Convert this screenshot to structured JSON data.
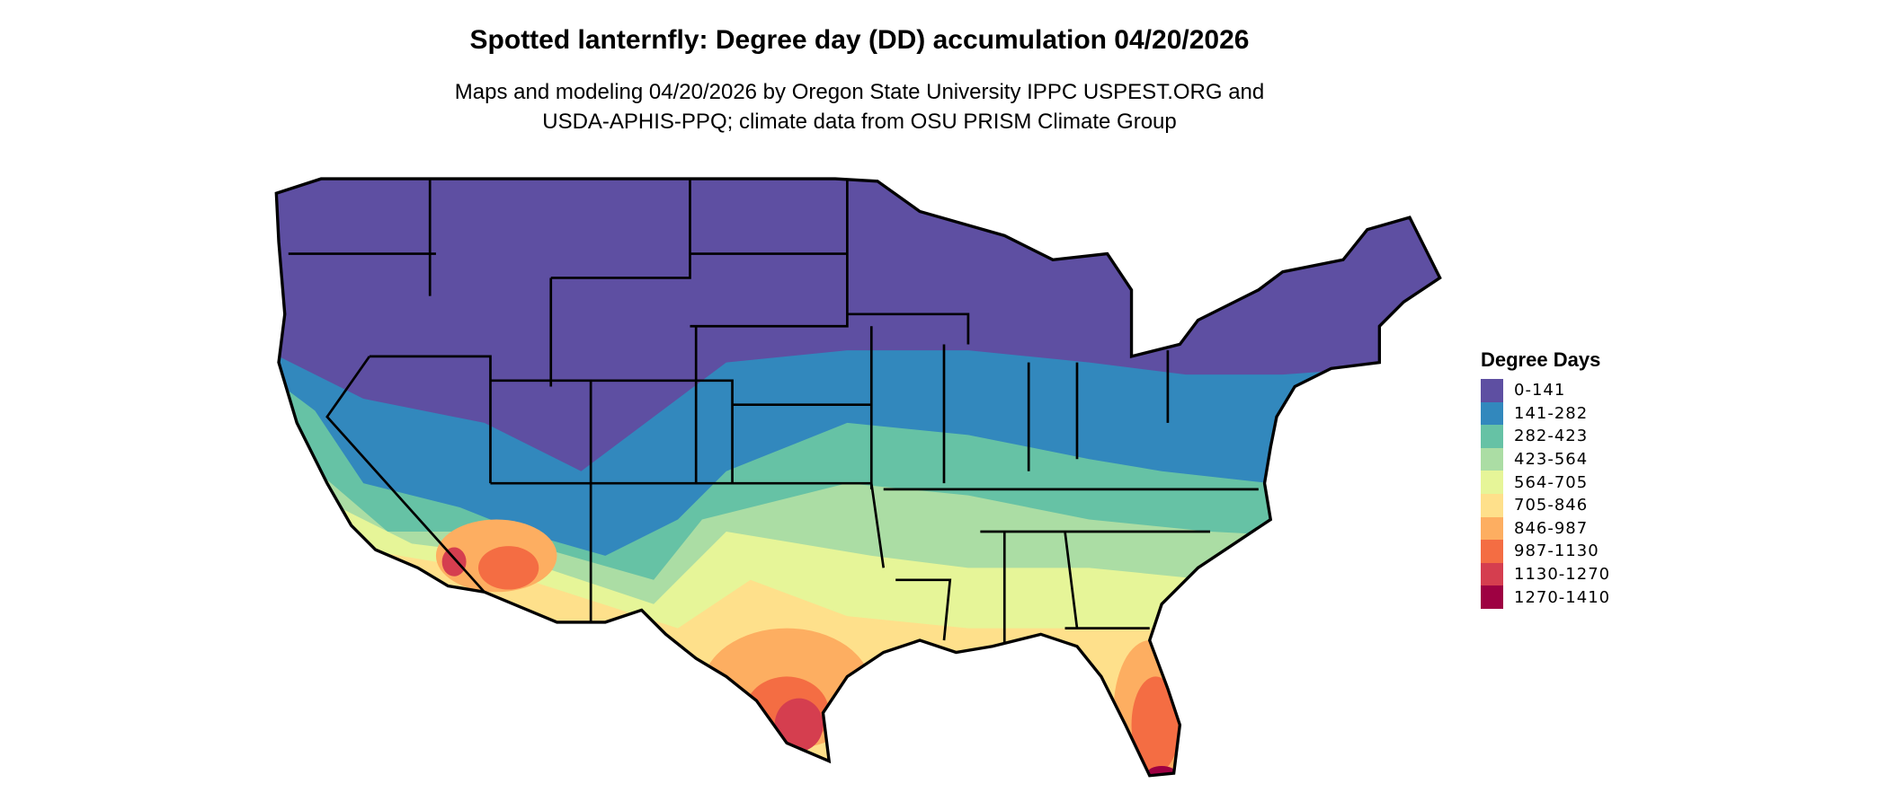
{
  "title": "Spotted lanternfly: Degree day (DD) accumulation 04/20/2026",
  "subtitle": [
    "Maps and modeling 04/20/2026 by Oregon State University IPPC USPEST.ORG and",
    "USDA-APHIS-PPQ; climate data from OSU PRISM Climate Group"
  ],
  "legend": {
    "title": "Degree Days",
    "items": [
      {
        "label": "0-141",
        "color": "#5E4FA2"
      },
      {
        "label": "141-282",
        "color": "#3288BD"
      },
      {
        "label": "282-423",
        "color": "#66C2A5"
      },
      {
        "label": "423-564",
        "color": "#ABDDA4"
      },
      {
        "label": "564-705",
        "color": "#E6F598"
      },
      {
        "label": "705-846",
        "color": "#FEE08B"
      },
      {
        "label": "846-987",
        "color": "#FDAE61"
      },
      {
        "label": "987-1130",
        "color": "#F46D43"
      },
      {
        "label": "1130-1270",
        "color": "#D53E4F"
      },
      {
        "label": "1270-1410",
        "color": "#9E0142"
      }
    ]
  }
}
